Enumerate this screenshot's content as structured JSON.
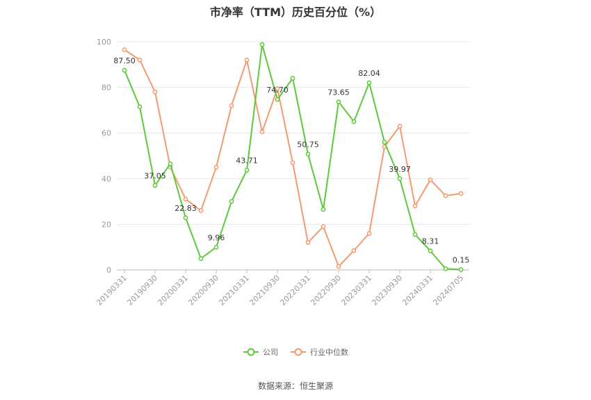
{
  "chart_data": {
    "type": "line",
    "title": "市净率（TTM）历史百分位（%）",
    "xlabel": "",
    "ylabel": "",
    "ylim": [
      0,
      100
    ],
    "yticks": [
      0,
      20,
      40,
      60,
      80,
      100
    ],
    "grid": true,
    "legend": "bottom",
    "x_tick_labels": [
      "20190331",
      "20190930",
      "20200331",
      "20200930",
      "20210331",
      "20210930",
      "20220331",
      "20220930",
      "20230331",
      "20230930",
      "20240331",
      "20240705"
    ],
    "x": [
      "20190331",
      "20190630",
      "20190930",
      "20191231",
      "20200331",
      "20200630",
      "20200930",
      "20201231",
      "20210331",
      "20210630",
      "20210930",
      "20211231",
      "20220331",
      "20220630",
      "20220930",
      "20221231",
      "20230331",
      "20230630",
      "20230930",
      "20231231",
      "20240331",
      "20240630",
      "20240705"
    ],
    "series": [
      {
        "name": "公司",
        "color": "#5cc93b",
        "values": [
          87.5,
          71.5,
          37.05,
          46.5,
          22.83,
          5.0,
          9.96,
          30.0,
          43.71,
          98.8,
          74.7,
          84.0,
          50.75,
          26.5,
          73.65,
          65.0,
          82.04,
          56.0,
          39.97,
          15.5,
          8.31,
          0.5,
          0.15
        ]
      },
      {
        "name": "行业中位数",
        "color": "#f59a6e",
        "values": [
          96.5,
          92.0,
          78.0,
          45.0,
          31.0,
          26.0,
          45.0,
          72.0,
          92.0,
          60.5,
          79.5,
          47.0,
          12.0,
          19.0,
          1.5,
          8.5,
          16.0,
          54.0,
          63.0,
          28.0,
          39.5,
          32.5,
          33.5
        ]
      }
    ],
    "data_labels": [
      {
        "series": 0,
        "index": 0,
        "text": "87.50"
      },
      {
        "series": 0,
        "index": 2,
        "text": "37.05"
      },
      {
        "series": 0,
        "index": 4,
        "text": "22.83"
      },
      {
        "series": 0,
        "index": 6,
        "text": "9.96"
      },
      {
        "series": 0,
        "index": 8,
        "text": "43.71"
      },
      {
        "series": 0,
        "index": 10,
        "text": "74.70"
      },
      {
        "series": 0,
        "index": 12,
        "text": "50.75"
      },
      {
        "series": 0,
        "index": 14,
        "text": "73.65"
      },
      {
        "series": 0,
        "index": 16,
        "text": "82.04"
      },
      {
        "series": 0,
        "index": 18,
        "text": "39.97"
      },
      {
        "series": 0,
        "index": 20,
        "text": "8.31"
      },
      {
        "series": 0,
        "index": 22,
        "text": "0.15"
      }
    ]
  },
  "source": "数据来源：恒生聚源"
}
